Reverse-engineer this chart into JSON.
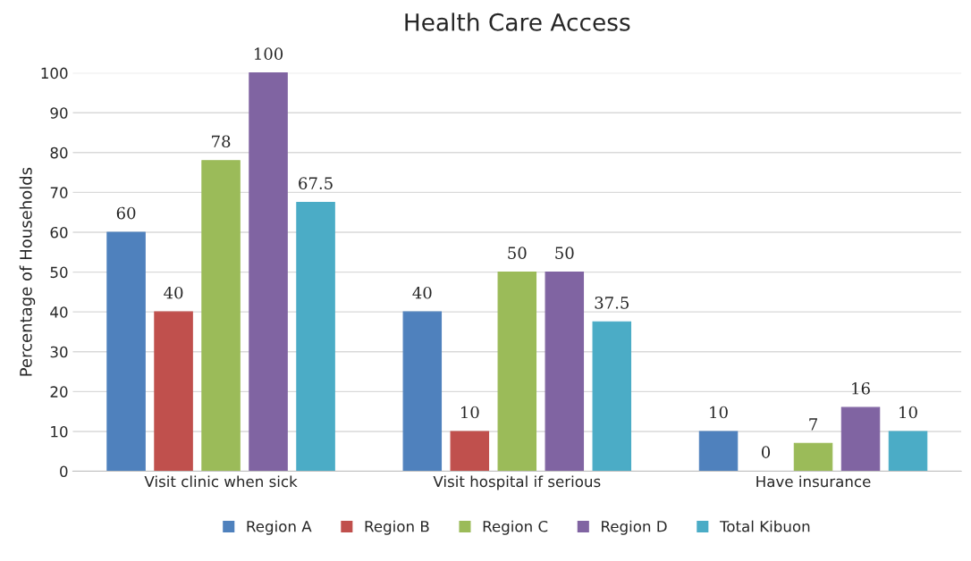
{
  "chart_data": {
    "type": "bar",
    "title": "Health Care Access",
    "ylabel": "Percentage of Households",
    "categories": [
      "Visit clinic when sick",
      "Visit hospital if serious",
      "Have insurance"
    ],
    "series": [
      {
        "name": "Region A",
        "color": "#4f81bd",
        "values": [
          60,
          40,
          10
        ]
      },
      {
        "name": "Region B",
        "color": "#c0504d",
        "values": [
          40,
          10,
          0
        ]
      },
      {
        "name": "Region C",
        "color": "#9bbb59",
        "values": [
          78,
          50,
          7
        ]
      },
      {
        "name": "Region D",
        "color": "#8064a2",
        "values": [
          100,
          50,
          16
        ]
      },
      {
        "name": "Total Kibuon",
        "color": "#4bacc6",
        "values": [
          67.5,
          37.5,
          10
        ]
      }
    ],
    "ylim": [
      0,
      100
    ],
    "yticks": [
      0,
      10,
      20,
      30,
      40,
      50,
      60,
      70,
      80,
      90,
      100
    ],
    "grid": "y",
    "legend": "bottom",
    "data_labels": true
  }
}
